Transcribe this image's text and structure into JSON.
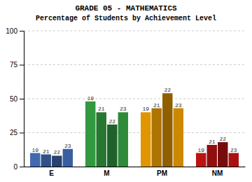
{
  "chart_data": {
    "type": "bar",
    "title": "GRADE 05 - MATHEMATICS",
    "subtitle": "Percentage of Students by Achievement Level",
    "categories": [
      "E",
      "M",
      "PM",
      "NM"
    ],
    "series": [
      {
        "name": "19",
        "values": [
          10,
          48,
          40,
          10
        ],
        "colors": [
          "#4069b0",
          "#339940",
          "#e09600",
          "#bb1313"
        ]
      },
      {
        "name": "21",
        "values": [
          9,
          40,
          43,
          16
        ],
        "colors": [
          "#315188",
          "#277631",
          "#ad7400",
          "#910e0e"
        ]
      },
      {
        "name": "22",
        "values": [
          8,
          31,
          54,
          18
        ],
        "colors": [
          "#294270",
          "#206129",
          "#8f5f00",
          "#770c0c"
        ]
      },
      {
        "name": "23",
        "values": [
          13,
          40,
          43,
          10
        ],
        "colors": [
          "#3a5fa0",
          "#2e8b3a",
          "#cc8800",
          "#aa1111"
        ]
      }
    ],
    "ylim": [
      0,
      100
    ],
    "yticks": [
      0,
      25,
      50,
      75,
      100
    ],
    "grid": true
  }
}
